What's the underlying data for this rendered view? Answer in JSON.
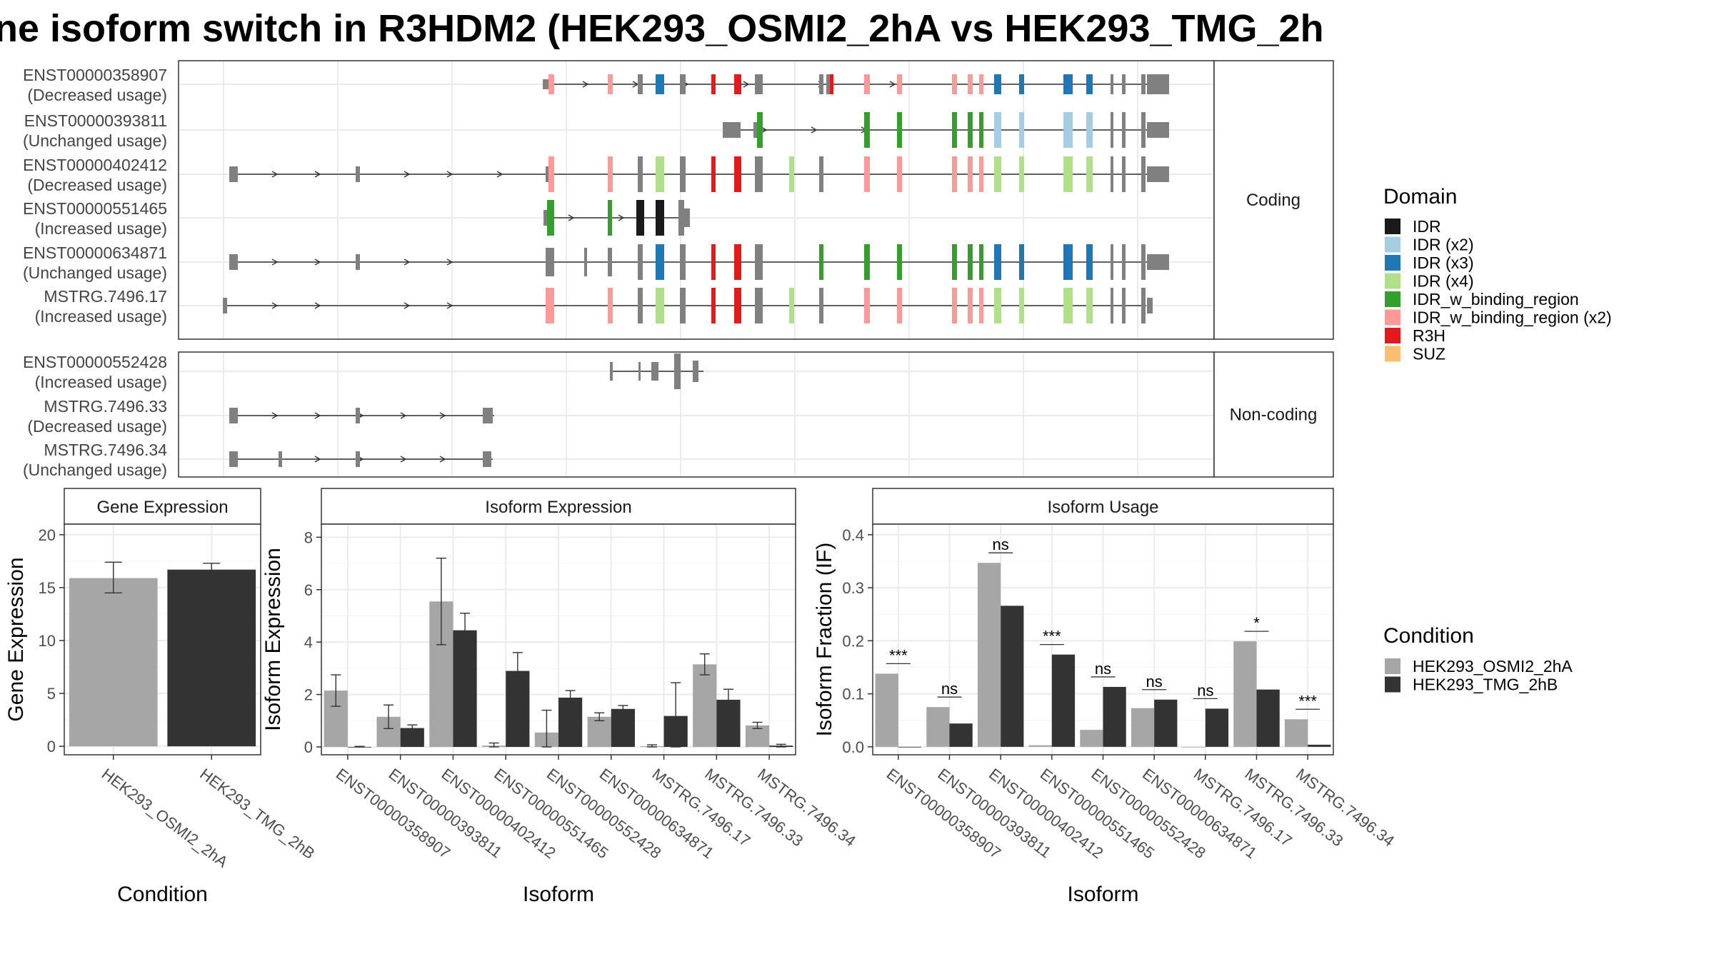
{
  "title": "ne isoform switch in R3HDM2 (HEK293_OSMI2_2hA vs HEK293_TMG_2h",
  "colors": {
    "IDR": "#1a1a1a",
    "IDR (x2)": "#a6cee3",
    "IDR (x3)": "#1f78b4",
    "IDR (x4)": "#b2df8a",
    "IDR_w_binding_region": "#33a02c",
    "IDR_w_binding_region (x2)": "#fb9a99",
    "R3H": "#e31a1c",
    "SUZ": "#fdbf6f",
    "exon": "#808080",
    "cond1": "#a6a6a6",
    "cond2": "#333333"
  },
  "chart_data": [
    {
      "type": "gene-structure",
      "panels": [
        {
          "strip": "Coding",
          "transcripts": [
            {
              "id": "ENST00000358907",
              "usage": "(Decreased usage)",
              "start": 1325,
              "end": 1378,
              "exons": [
                [
                  1325,
                  1326.5,
                  "exon"
                ],
                [
                  1327,
                  1328,
                  "IDR_w_binding_region (x2)"
                ],
                [
                  1339,
                  1340,
                  "IDR_w_binding_region (x2)"
                ],
                [
                  1344,
                  1345,
                  "exon"
                ],
                [
                  1345.5,
                  1347,
                  "IDR (x3)"
                ],
                [
                  1348,
                  1349,
                  "exon"
                ],
                [
                  1350.5,
                  1351.5,
                  "R3H"
                ],
                [
                  1352.5,
                  1354,
                  "R3H"
                ],
                [
                  1354.5,
                  1356,
                  "exon"
                ],
                [
                  1358,
                  1358.5,
                  "exon"
                ],
                [
                  1359,
                  1359.5,
                  "exon"
                ],
                [
                  1360,
                  1361,
                  "R3H"
                ],
                [
                  1361,
                  1361.5,
                  "exon"
                ],
                [
                  1362.5,
                  1363.5,
                  "IDR_w_binding_region (x2)"
                ],
                [
                  1365,
                  1366,
                  "IDR_w_binding_region (x2)"
                ],
                [
                  1368.5,
                  1369.5,
                  "IDR_w_binding_region (x2)"
                ],
                [
                  1370,
                  1371,
                  "IDR_w_binding_region (x2)"
                ],
                [
                  1371.5,
                  1372.5,
                  "IDR_w_binding_region (x2)"
                ],
                [
                  1373,
                  1374,
                  "IDR (x3)"
                ],
                [
                  1375,
                  1375.5,
                  "IDR (x3)"
                ],
                [
                  1376.5,
                  1377.5,
                  "IDR (x3)"
                ],
                [
                  1378,
                  1379,
                  "IDR (x3)"
                ],
                [
                  1379,
                  1380.5,
                  "exon"
                ]
              ]
            },
            {
              "id": "ENST00000393811",
              "usage": "(Unchanged usage)",
              "start": 1337,
              "end": 1378,
              "exons": [
                [
                  1336,
                  1337.5,
                  "exon"
                ],
                [
                  1338,
                  1338.5,
                  "exon"
                ],
                [
                  1338.5,
                  1339.5,
                  "IDR_w_binding_region"
                ]
              ]
            },
            {
              "id": "ENST00000402412",
              "usage": "(Decreased usage)"
            },
            {
              "id": "ENST00000551465",
              "usage": "(Increased usage)"
            },
            {
              "id": "ENST00000634871",
              "usage": "(Unchanged usage)"
            },
            {
              "id": "MSTRG.7496.17",
              "usage": "(Increased usage)"
            }
          ]
        },
        {
          "strip": "Non-coding",
          "transcripts": [
            {
              "id": "ENST00000552428",
              "usage": "(Increased usage)"
            },
            {
              "id": "MSTRG.7496.33",
              "usage": "(Decreased usage)"
            },
            {
              "id": "MSTRG.7496.34",
              "usage": "(Unchanged usage)"
            }
          ]
        }
      ]
    },
    {
      "type": "bar",
      "facet": "Gene Expression",
      "categories": [
        "HEK293_OSMI2_2hA",
        "HEK293_TMG_2hB"
      ],
      "values": [
        15.9,
        16.7
      ],
      "errors": [
        [
          14.5,
          17.4
        ],
        [
          16.1,
          17.3
        ]
      ],
      "xlabel": "Condition",
      "ylabel": "Gene Expression",
      "ylim": [
        -0.8,
        21
      ],
      "yticks": [
        0,
        5,
        10,
        15,
        20
      ]
    },
    {
      "type": "bar",
      "facet": "Isoform Expression",
      "categories": [
        "ENST00000358907",
        "ENST00000393811",
        "ENST00000402412",
        "ENST00000551465",
        "ENST00000552428",
        "ENST00000634871",
        "MSTRG.7496.17",
        "MSTRG.7496.33",
        "MSTRG.7496.34"
      ],
      "series": [
        {
          "name": "HEK293_OSMI2_2hA",
          "values": [
            2.15,
            1.15,
            5.55,
            0.05,
            0.55,
            1.15,
            0.03,
            3.15,
            0.82
          ],
          "errors": [
            [
              1.55,
              2.75
            ],
            [
              0.7,
              1.6
            ],
            [
              3.9,
              7.2
            ],
            [
              0.0,
              0.15
            ],
            [
              0.0,
              1.4
            ],
            [
              1.0,
              1.3
            ],
            [
              0.0,
              0.08
            ],
            [
              2.75,
              3.55
            ],
            [
              0.7,
              0.94
            ]
          ]
        },
        {
          "name": "HEK293_TMG_2hB",
          "values": [
            0.0,
            0.72,
            4.45,
            2.9,
            1.88,
            1.45,
            1.18,
            1.8,
            0.05
          ],
          "errors": [
            [
              0.0,
              0.02
            ],
            [
              0.6,
              0.84
            ],
            [
              3.75,
              5.1
            ],
            [
              2.2,
              3.6
            ],
            [
              1.6,
              2.15
            ],
            [
              1.35,
              1.58
            ],
            [
              0.0,
              2.45
            ],
            [
              1.4,
              2.2
            ],
            [
              0.0,
              0.1
            ]
          ]
        }
      ],
      "xlabel": "Isoform",
      "ylabel": "Isoform Expression",
      "ylim": [
        -0.3,
        8.5
      ],
      "yticks": [
        0,
        2,
        4,
        6,
        8
      ]
    },
    {
      "type": "bar",
      "facet": "Isoform Usage",
      "categories": [
        "ENST00000358907",
        "ENST00000393811",
        "ENST00000402412",
        "ENST00000551465",
        "ENST00000552428",
        "ENST00000634871",
        "MSTRG.7496.17",
        "MSTRG.7496.33",
        "MSTRG.7496.34"
      ],
      "series": [
        {
          "name": "HEK293_OSMI2_2hA",
          "values": [
            0.138,
            0.075,
            0.347,
            0.003,
            0.032,
            0.073,
            0.0,
            0.199,
            0.052
          ]
        },
        {
          "name": "HEK293_TMG_2hB",
          "values": [
            0.0,
            0.044,
            0.266,
            0.174,
            0.113,
            0.089,
            0.072,
            0.108,
            0.004
          ]
        }
      ],
      "significance": [
        "***",
        "ns",
        "ns",
        "***",
        "ns",
        "ns",
        "ns",
        "*",
        "***"
      ],
      "xlabel": "Isoform",
      "ylabel": "Isoform Fraction (IF)",
      "ylim": [
        -0.015,
        0.42
      ],
      "yticks": [
        0.0,
        0.1,
        0.2,
        0.3,
        0.4
      ],
      "yticklabels": [
        "0.0",
        "0.1",
        "0.2",
        "0.3",
        "0.4"
      ]
    }
  ],
  "legend_domain": {
    "title": "Domain",
    "items": [
      "IDR",
      "IDR (x2)",
      "IDR (x3)",
      "IDR (x4)",
      "IDR_w_binding_region",
      "IDR_w_binding_region (x2)",
      "R3H",
      "SUZ"
    ]
  },
  "legend_condition": {
    "title": "Condition",
    "items": [
      "HEK293_OSMI2_2hA",
      "HEK293_TMG_2hB"
    ]
  }
}
